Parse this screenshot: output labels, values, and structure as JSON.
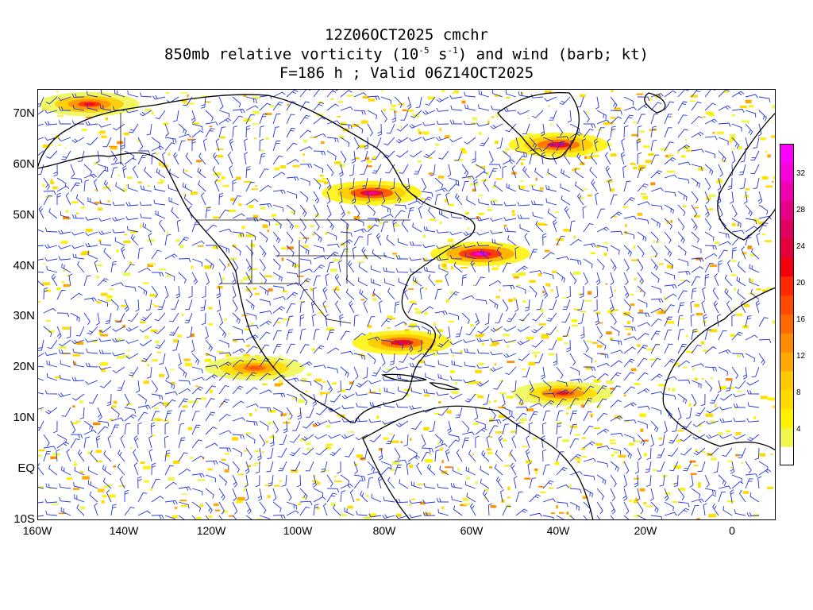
{
  "title": {
    "line1": "12Z06OCT2025 cmchr",
    "line2_pre": "850mb relative vorticity (10",
    "line2_exp1": "-5",
    "line2_mid": " s",
    "line2_exp2": "-1",
    "line2_post": ") and wind (barb; kt)",
    "line3": "F=186 h ; Valid 06Z14OCT2025"
  },
  "axes": {
    "lat_labels": [
      "70N",
      "60N",
      "50N",
      "40N",
      "30N",
      "20N",
      "10N",
      "EQ",
      "10S"
    ],
    "lon_labels": [
      "160W",
      "140W",
      "120W",
      "100W",
      "80W",
      "60W",
      "40W",
      "20W",
      "0"
    ],
    "lat_range": [
      -10,
      75
    ],
    "lon_range": [
      -160,
      10
    ]
  },
  "colorbar": {
    "ticks": [
      "4",
      "8",
      "12",
      "16",
      "20",
      "24",
      "28",
      "32"
    ],
    "levels": [
      2,
      4,
      6,
      8,
      10,
      12,
      14,
      16,
      18,
      20,
      22,
      24,
      26,
      28,
      30,
      32,
      34
    ],
    "colors": [
      "#ffffff",
      "#eef74d",
      "#fff200",
      "#ffdc00",
      "#ffc800",
      "#ffa800",
      "#ff8c00",
      "#ff6a00",
      "#ff4a00",
      "#ff2a00",
      "#f2000e",
      "#e4003a",
      "#dd0060",
      "#e60088",
      "#f000b0",
      "#f800d8",
      "#ff00ff"
    ]
  },
  "colors": {
    "wind_barb": "#2233dd",
    "coastline": "#000000"
  },
  "vorticity_features": [
    {
      "lat": 42.5,
      "lon": -58,
      "peak": 34
    },
    {
      "lat": 54.5,
      "lon": -83,
      "peak": 30
    },
    {
      "lat": 15,
      "lon": -39,
      "peak": 22
    },
    {
      "lat": 64,
      "lon": -40,
      "peak": 28
    },
    {
      "lat": 72,
      "lon": -148,
      "peak": 24
    },
    {
      "lat": 25,
      "lon": -76,
      "peak": 26
    },
    {
      "lat": 20,
      "lon": -110,
      "peak": 18
    }
  ]
}
